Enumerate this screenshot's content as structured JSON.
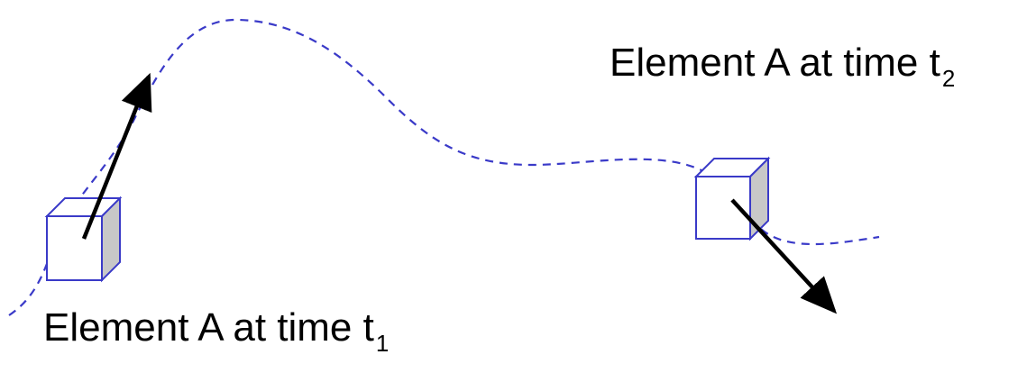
{
  "labels": {
    "t1": {
      "text": "Element A at time t",
      "subscript": "1"
    },
    "t2": {
      "text": "Element A at time t",
      "subscript": "2"
    }
  },
  "colors": {
    "trajectory": "#3a3ac8",
    "cube_outline": "#3a3ac8",
    "cube_side_fill": "#c8c8c8",
    "arrow": "#000000",
    "text": "#000000"
  },
  "icons": {
    "element_t1": "cube-icon",
    "element_t2": "cube-icon",
    "velocity_t1": "arrow-icon",
    "velocity_t2": "arrow-icon"
  }
}
